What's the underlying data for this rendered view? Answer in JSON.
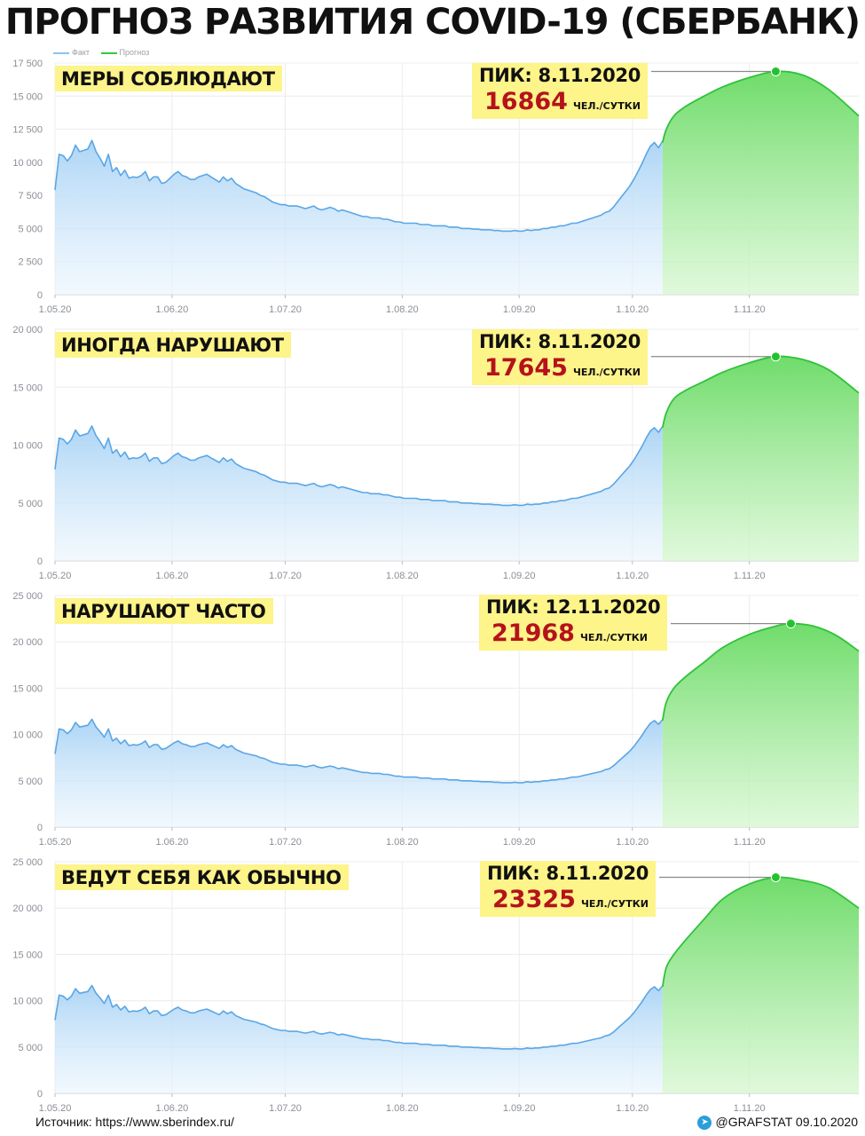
{
  "title": "ПРОГНОЗ РАЗВИТИЯ COVID-19 (СБЕРБАНК)",
  "legend": [
    {
      "label": "Факт",
      "color": "#8ec3ef"
    },
    {
      "label": "Прогноз",
      "color": "#2ecc40"
    }
  ],
  "colors": {
    "fact_line": "#5aa6e6",
    "forecast_line": "#2fc23a",
    "peak_marker": "#22c22e",
    "highlight": "#fdf48a",
    "peak_value": "#b5121b"
  },
  "source": "Источник: https://www.sberindex.ru/",
  "credit": "@GRAFSTAT 09.10.2020",
  "x_ticks": [
    "1.05.20",
    "1.06.20",
    "1.07.20",
    "1.08.20",
    "1.09.20",
    "1.10.20",
    "1.11.20"
  ],
  "fact": {
    "start": "1.05.20",
    "end": "9.10.20",
    "values": [
      7900,
      10600,
      10500,
      10100,
      10500,
      11300,
      10800,
      10900,
      11000,
      11650,
      10800,
      10300,
      9700,
      10600,
      9300,
      9600,
      9000,
      9400,
      8800,
      8900,
      8850,
      9000,
      9300,
      8600,
      8900,
      8900,
      8400,
      8500,
      8800,
      9100,
      9300,
      9000,
      8900,
      8700,
      8700,
      8900,
      9000,
      9100,
      8900,
      8700,
      8500,
      8900,
      8600,
      8800,
      8400,
      8200,
      8000,
      7900,
      7800,
      7700,
      7500,
      7400,
      7200,
      7000,
      6900,
      6800,
      6800,
      6700,
      6700,
      6700,
      6600,
      6500,
      6600,
      6700,
      6500,
      6400,
      6500,
      6600,
      6500,
      6300,
      6400,
      6300,
      6200,
      6100,
      6000,
      5900,
      5900,
      5800,
      5800,
      5800,
      5700,
      5700,
      5600,
      5500,
      5500,
      5400,
      5400,
      5400,
      5400,
      5300,
      5300,
      5300,
      5200,
      5200,
      5200,
      5200,
      5100,
      5100,
      5100,
      5000,
      5000,
      5000,
      4950,
      4950,
      4900,
      4900,
      4900,
      4850,
      4850,
      4800,
      4800,
      4800,
      4850,
      4800,
      4800,
      4900,
      4850,
      4900,
      4900,
      5000,
      5000,
      5100,
      5100,
      5200,
      5200,
      5300,
      5400,
      5400,
      5500,
      5600,
      5700,
      5800,
      5900,
      6000,
      6200,
      6300,
      6600,
      7000,
      7400,
      7800,
      8200,
      8700,
      9300,
      9900,
      10600,
      11200,
      11500,
      11100,
      11600
    ]
  },
  "chart_data": [
    {
      "type": "area",
      "scenario": "МЕРЫ СОБЛЮДАЮТ",
      "peak_label": "ПИК: 8.11.2020",
      "peak_value": 16864,
      "peak_value_label": "16864",
      "peak_unit": "ЧЕЛ./СУТКИ",
      "peak_date": "8.11.20",
      "y_ticks": [
        "0",
        "2 500",
        "5 000",
        "7 500",
        "10 000",
        "12 500",
        "15 000",
        "17 500"
      ],
      "ylim": [
        0,
        17500
      ],
      "x_ticks": [
        "1.05.20",
        "1.06.20",
        "1.07.20",
        "1.08.20",
        "1.09.20",
        "1.10.20",
        "1.11.20"
      ],
      "forecast": {
        "start": "9.10.20",
        "end": "30.11.20",
        "x": [
          "9.10.20",
          "10.10.20",
          "12.10.20",
          "15.10.20",
          "20.10.20",
          "25.10.20",
          "1.11.20",
          "8.11.20",
          "15.11.20",
          "22.11.20",
          "30.11.20"
        ],
        "values": [
          11500,
          12500,
          13500,
          14200,
          15000,
          15700,
          16400,
          16864,
          16600,
          15500,
          13500
        ]
      }
    },
    {
      "type": "area",
      "scenario": "ИНОГДА НАРУШАЮТ",
      "peak_label": "ПИК: 8.11.2020",
      "peak_value": 17645,
      "peak_value_label": "17645",
      "peak_unit": "ЧЕЛ./СУТКИ",
      "peak_date": "8.11.20",
      "y_ticks": [
        "0",
        "5 000",
        "10 000",
        "15 000",
        "20 000"
      ],
      "ylim": [
        0,
        20000
      ],
      "x_ticks": [
        "1.05.20",
        "1.06.20",
        "1.07.20",
        "1.08.20",
        "1.09.20",
        "1.10.20",
        "1.11.20"
      ],
      "forecast": {
        "start": "9.10.20",
        "end": "30.11.20",
        "x": [
          "9.10.20",
          "10.10.20",
          "12.10.20",
          "15.10.20",
          "20.10.20",
          "25.10.20",
          "1.11.20",
          "8.11.20",
          "15.11.20",
          "22.11.20",
          "30.11.20"
        ],
        "values": [
          11500,
          12800,
          14000,
          14700,
          15500,
          16300,
          17100,
          17645,
          17400,
          16500,
          14500
        ]
      }
    },
    {
      "type": "area",
      "scenario": "НАРУШАЮТ ЧАСТО",
      "peak_label": "ПИК: 12.11.2020",
      "peak_value": 21968,
      "peak_value_label": "21968",
      "peak_unit": "ЧЕЛ./СУТКИ",
      "peak_date": "12.11.20",
      "y_ticks": [
        "0",
        "5 000",
        "10 000",
        "15 000",
        "20 000",
        "25 000"
      ],
      "ylim": [
        0,
        25000
      ],
      "x_ticks": [
        "1.05.20",
        "1.06.20",
        "1.07.20",
        "1.08.20",
        "1.09.20",
        "1.10.20",
        "1.11.20"
      ],
      "forecast": {
        "start": "9.10.20",
        "end": "30.11.20",
        "x": [
          "9.10.20",
          "10.10.20",
          "12.10.20",
          "15.10.20",
          "20.10.20",
          "25.10.20",
          "1.11.20",
          "8.11.20",
          "12.11.20",
          "18.11.20",
          "24.11.20",
          "30.11.20"
        ],
        "values": [
          11500,
          13500,
          15000,
          16200,
          17800,
          19400,
          20800,
          21700,
          21968,
          21700,
          20700,
          19000
        ]
      }
    },
    {
      "type": "area",
      "scenario": "ВЕДУТ СЕБЯ КАК ОБЫЧНО",
      "peak_label": "ПИК: 8.11.2020",
      "peak_value": 23325,
      "peak_value_label": "23325",
      "peak_unit": "ЧЕЛ./СУТКИ",
      "peak_date": "8.11.20",
      "y_ticks": [
        "0",
        "5 000",
        "10 000",
        "15 000",
        "20 000",
        "25 000"
      ],
      "ylim": [
        0,
        25000
      ],
      "x_ticks": [
        "1.05.20",
        "1.06.20",
        "1.07.20",
        "1.08.20",
        "1.09.20",
        "1.10.20",
        "1.11.20"
      ],
      "forecast": {
        "start": "9.10.20",
        "end": "30.11.20",
        "x": [
          "9.10.20",
          "10.10.20",
          "12.10.20",
          "15.10.20",
          "20.10.20",
          "25.10.20",
          "1.11.20",
          "8.11.20",
          "15.11.20",
          "22.11.20",
          "30.11.20"
        ],
        "values": [
          11500,
          13600,
          15000,
          16500,
          18800,
          21000,
          22600,
          23325,
          23000,
          22200,
          20000
        ]
      }
    }
  ]
}
